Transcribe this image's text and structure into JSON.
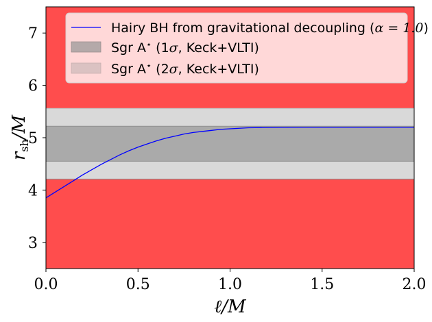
{
  "chart_data": {
    "type": "line",
    "title": "",
    "xlabel": "ℓ/M",
    "ylabel": "r_sh/M",
    "ylabel_main": "r",
    "ylabel_sub": "sh",
    "ylabel_tail": "/M",
    "xlim": [
      0.0,
      2.0
    ],
    "ylim": [
      2.5,
      7.5
    ],
    "xticks": [
      0.0,
      0.5,
      1.0,
      1.5,
      2.0
    ],
    "xtick_labels": [
      "0.0",
      "0.5",
      "1.0",
      "1.5",
      "2.0"
    ],
    "yticks": [
      3,
      4,
      5,
      6,
      7
    ],
    "ytick_labels": [
      "3",
      "4",
      "5",
      "6",
      "7"
    ],
    "grid": false,
    "legend_position": "top",
    "excluded_color": "#ff4d4d",
    "bands": [
      {
        "name": "Sgr A* (2σ, Keck+VLTI)",
        "ymin": 4.21,
        "ymax": 5.56,
        "color": "#d9d9d9"
      },
      {
        "name": "Sgr A* (1σ, Keck+VLTI)",
        "ymin": 4.55,
        "ymax": 5.22,
        "color": "#aaaaaa"
      }
    ],
    "series": [
      {
        "name": "Hairy BH from gravitational decoupling (α = 1.0)",
        "color": "#0000ff",
        "x": [
          0.0,
          0.05,
          0.1,
          0.15,
          0.2,
          0.25,
          0.3,
          0.35,
          0.4,
          0.45,
          0.5,
          0.55,
          0.6,
          0.65,
          0.7,
          0.75,
          0.8,
          0.85,
          0.9,
          0.95,
          1.0,
          1.1,
          1.2,
          1.3,
          1.4,
          1.5,
          1.6,
          1.7,
          1.8,
          1.9,
          2.0
        ],
        "y": [
          3.85,
          3.96,
          4.07,
          4.18,
          4.29,
          4.39,
          4.49,
          4.58,
          4.67,
          4.75,
          4.82,
          4.88,
          4.94,
          4.99,
          5.03,
          5.07,
          5.1,
          5.12,
          5.14,
          5.16,
          5.17,
          5.19,
          5.195,
          5.198,
          5.2,
          5.2,
          5.2,
          5.2,
          5.2,
          5.2,
          5.2
        ]
      }
    ]
  },
  "legend": {
    "entries": [
      {
        "label_prefix": "Hairy BH from gravitational decoupling (",
        "label_math": "α = 1.0",
        "label_suffix": ")",
        "kind": "line",
        "color": "#0000ff"
      },
      {
        "label_prefix": "Sgr A",
        "label_math": "⋆",
        "label_mid": " (1",
        "label_sigma": "σ",
        "label_suffix": ", Keck+VLTI)",
        "kind": "patch",
        "color": "#b4a9a9"
      },
      {
        "label_prefix": "Sgr A",
        "label_math": "⋆",
        "label_mid": " (2",
        "label_sigma": "σ",
        "label_suffix": ", Keck+VLTI)",
        "kind": "patch",
        "color": "#dbc2c2"
      }
    ]
  }
}
